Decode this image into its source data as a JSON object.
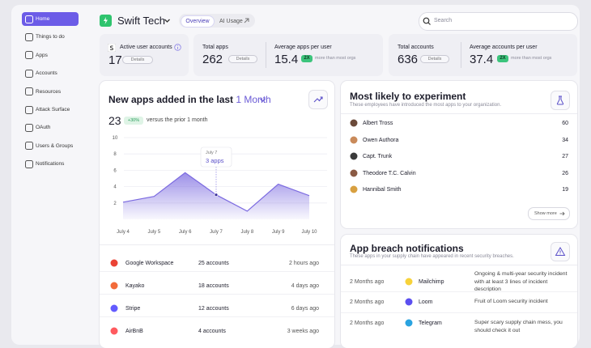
{
  "sidebar": {
    "items": [
      "Home",
      "Things to do",
      "Apps",
      "Accounts",
      "Resources",
      "Attack Surface",
      "OAuth",
      "Users & Groups",
      "Notifications"
    ]
  },
  "header": {
    "org": "Swift Tech",
    "tabs": [
      "Overview",
      "AI Usage"
    ],
    "search_placeholder": "Search"
  },
  "stats": {
    "active_users": {
      "label": "Active user accounts",
      "value": 17,
      "button": "Details"
    },
    "apps": {
      "label": "Total apps",
      "value": 262,
      "button": "Details",
      "average_label": "Average apps per user",
      "average": 15.4,
      "badge": "2X",
      "badge_note": "more than most orgs"
    },
    "accounts": {
      "label": "Total accounts",
      "value": 636,
      "button": "Details",
      "average_label": "Average accounts per user",
      "average": 37.4,
      "badge": "2X",
      "badge_note": "more than most orgs"
    }
  },
  "chart_card": {
    "title": "New apps added in the last",
    "period": "1 Month",
    "total": 23,
    "change": "+30%",
    "comparison": "versus the prior 1 month"
  },
  "chart_data": {
    "type": "area",
    "categories": [
      "July 4",
      "July 5",
      "July 6",
      "July 7",
      "July 8",
      "July 9",
      "July 10"
    ],
    "values": [
      2.1,
      2.8,
      5.7,
      3,
      1,
      4.3,
      2.9
    ],
    "ylim": [
      0,
      10
    ],
    "yticks": [
      2,
      4,
      6,
      8,
      10
    ],
    "color": "#7b6ae0",
    "grid": true,
    "annotations": [
      {
        "label": "July 7",
        "text": "3 apps"
      }
    ]
  },
  "apps_list": {
    "rows": [
      [
        "Google Workspace",
        "25 accounts",
        "2 hours ago"
      ],
      [
        "Kayako",
        "18 accounts",
        "4 days ago"
      ],
      [
        "Stripe",
        "12 accounts",
        "6 days ago"
      ],
      [
        "AirBnB",
        "4 accounts",
        "3 weeks ago"
      ]
    ]
  },
  "experiment": {
    "title": "Most likely to experiment",
    "subtitle": "These employees have introduced the most apps to your organization.",
    "rows": [
      [
        "Albert Tross",
        60
      ],
      [
        "Owen Authora",
        34
      ],
      [
        "Capt. Trunk",
        27
      ],
      [
        "Theodore T.C. Calvin",
        26
      ],
      [
        "Hannibal Smith",
        19
      ]
    ],
    "button": "Show more"
  },
  "breaches": {
    "title": "App breach notifications",
    "subtitle": "These apps in your supply chain have appeared in recent security breaches.",
    "rows": [
      [
        "2 Months ago",
        "Mailchimp",
        "Ongoing & multi-year security incident with at least 3 lines of incident description"
      ],
      [
        "2 Months ago",
        "Loom",
        "Fruit of Loom security incident"
      ],
      [
        "2 Months ago",
        "Telegram",
        "Super scary supply chain mess, you should check it out"
      ]
    ]
  }
}
